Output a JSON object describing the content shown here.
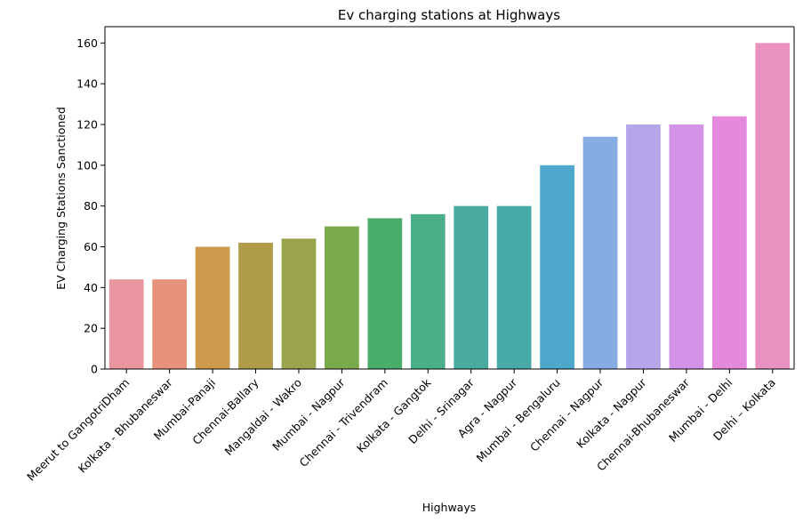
{
  "chart_data": {
    "type": "bar",
    "title": "Ev charging stations at Highways",
    "xlabel": "Highways",
    "ylabel": "EV Charging Stations Sanctioned",
    "ylim": [
      0,
      168
    ],
    "yticks": [
      0,
      20,
      40,
      60,
      80,
      100,
      120,
      140,
      160
    ],
    "grid": false,
    "categories": [
      "Meerut to GangotriDham",
      "Kolkata - Bhubaneswar",
      "Mumbai-Panaji",
      "Chennai-Ballary",
      "Mangaldai - Wakro",
      "Mumbai - Nagpur",
      "Chennai - Trivendram",
      "Kolkata - Gangtok",
      "Delhi - Srinagar",
      "Agra - Nagpur",
      "Mumbai - Bengaluru",
      "Chennai - Nagpur",
      "Kolkata - Nagpur",
      "Chennai-Bhubaneswar",
      "Mumbai - Delhi",
      "Delhi – Kolkata"
    ],
    "values": [
      44,
      44,
      60,
      62,
      64,
      70,
      74,
      76,
      80,
      80,
      100,
      114,
      120,
      120,
      124,
      160
    ],
    "colors": [
      "#e8959f",
      "#e69379",
      "#cd9a4e",
      "#b09b48",
      "#9ba34c",
      "#7aab4a",
      "#4aae6a",
      "#4bb08a",
      "#49aa9f",
      "#48a9a9",
      "#4ea8cc",
      "#85ace3",
      "#b5a6ea",
      "#d393e6",
      "#e589dc",
      "#e991bf"
    ]
  }
}
